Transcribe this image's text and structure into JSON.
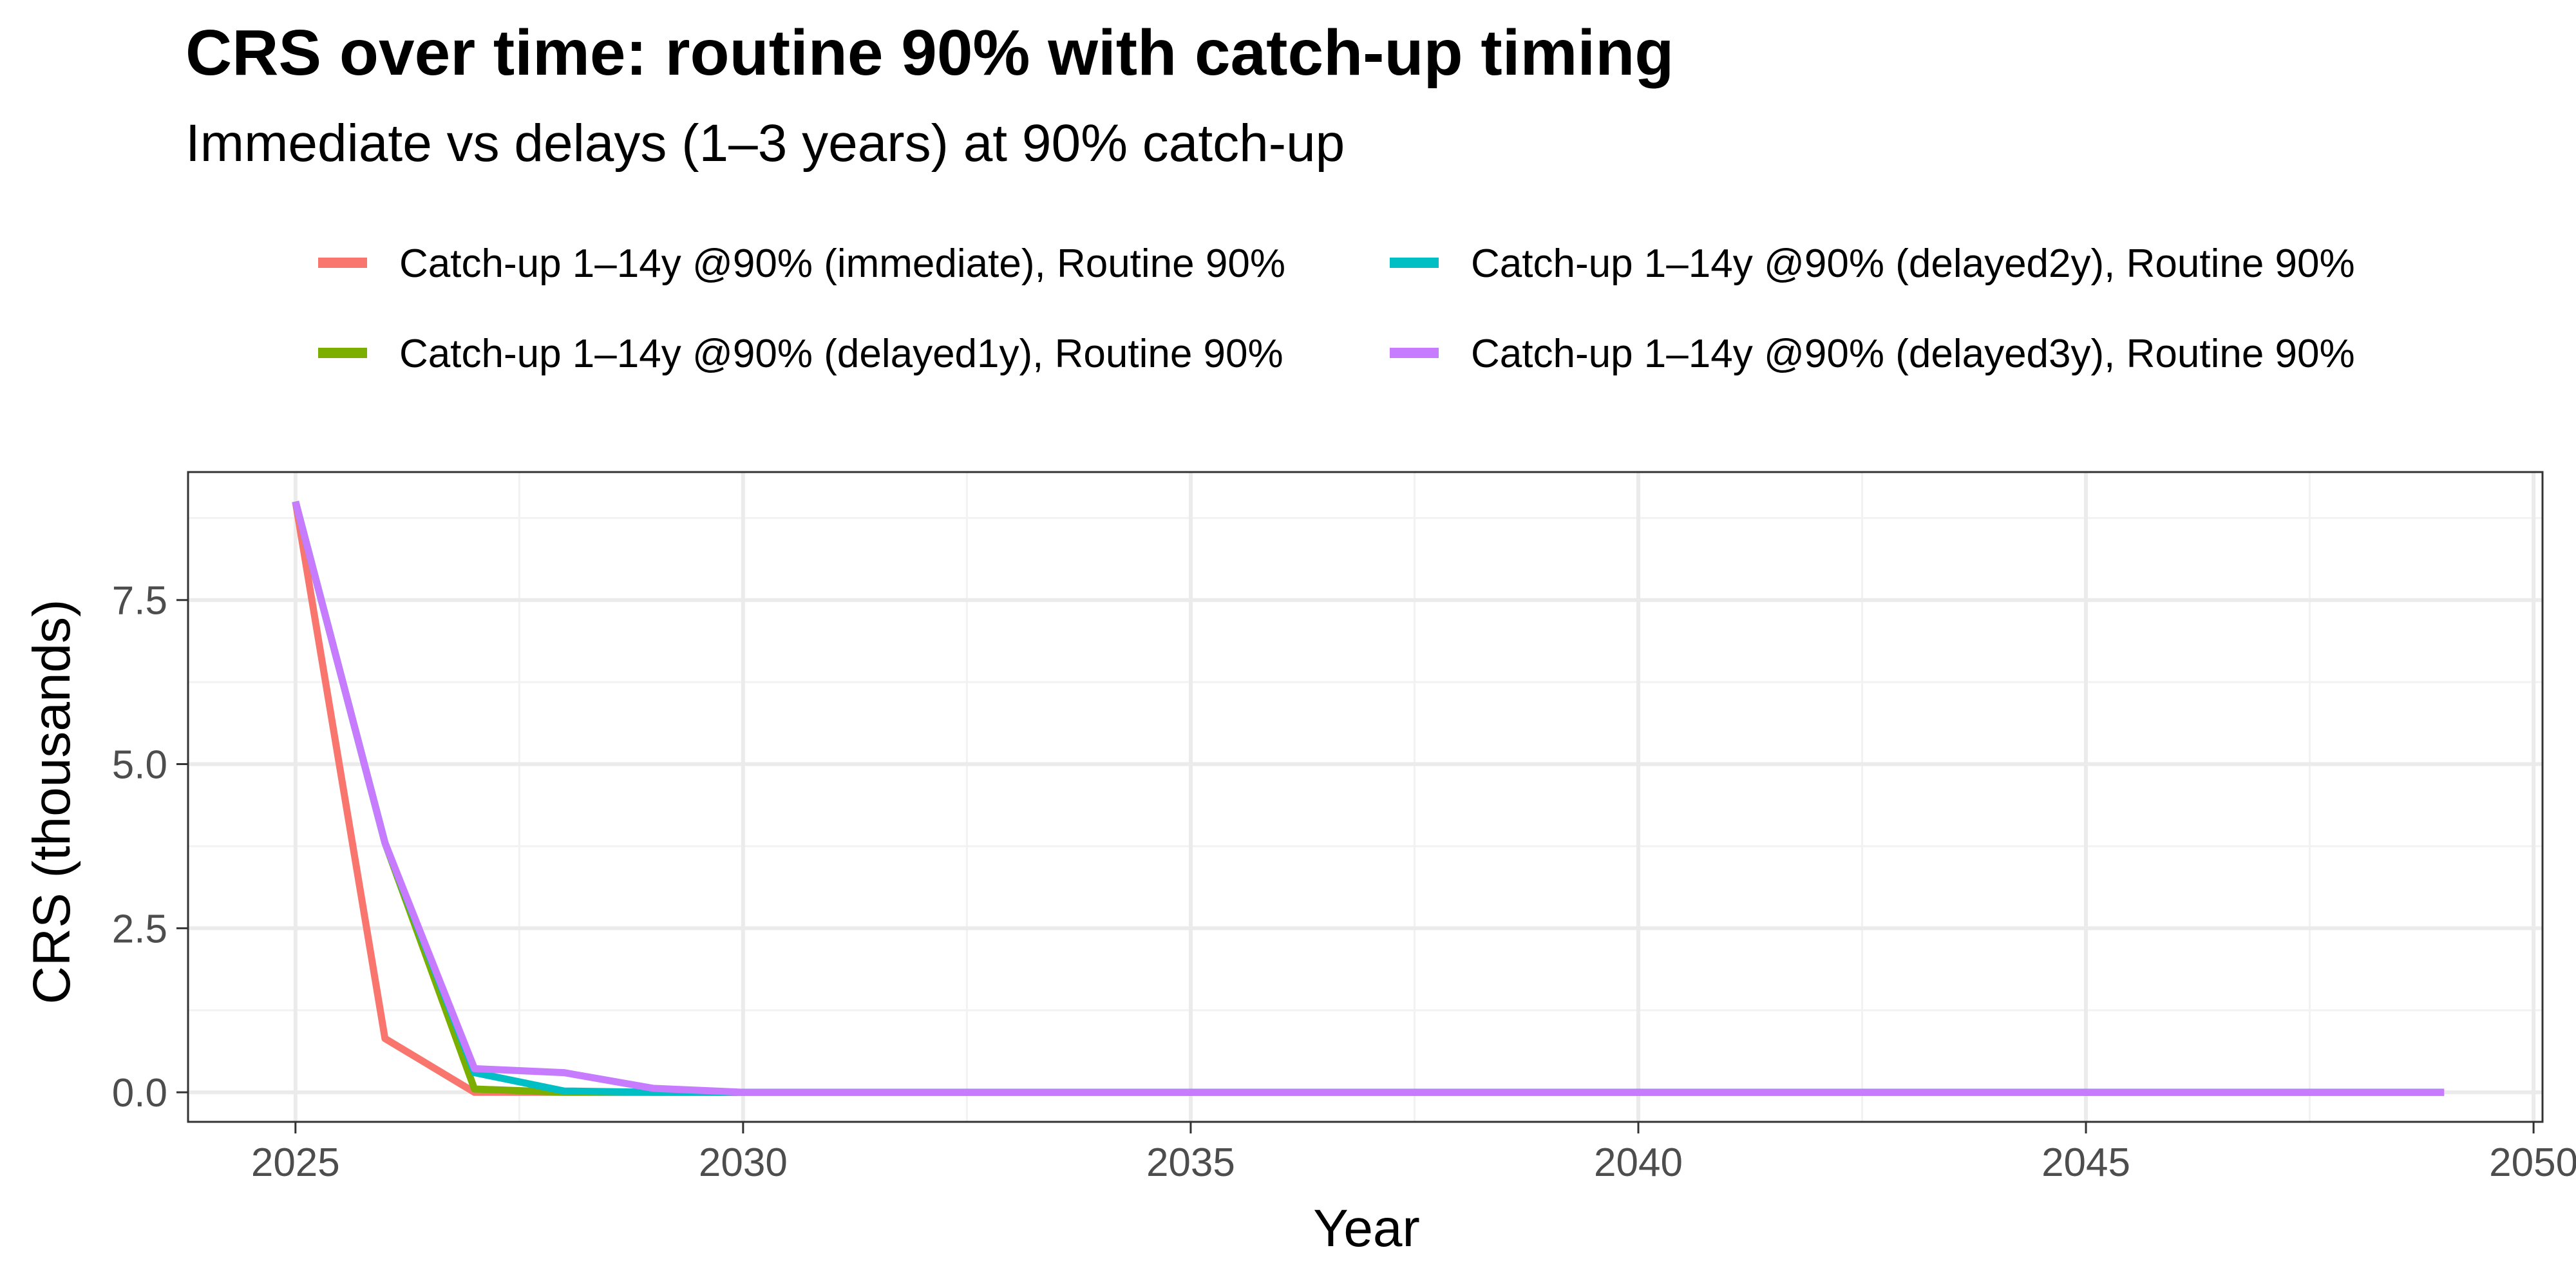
{
  "chart_data": {
    "type": "line",
    "title": "CRS over time: routine 90% with catch-up timing",
    "subtitle": "Immediate vs delays (1–3 years) at 90% catch-up",
    "xlabel": "Year",
    "ylabel": "CRS (thousands)",
    "xlim": [
      2023.8,
      2050.1
    ],
    "ylim": [
      -0.45,
      9.45
    ],
    "x_ticks": [
      2025,
      2030,
      2035,
      2040,
      2045,
      2050
    ],
    "y_ticks": [
      0.0,
      2.5,
      5.0,
      7.5
    ],
    "y_tick_labels": [
      "0.0",
      "2.5",
      "5.0",
      "7.5"
    ],
    "grid": true,
    "legend_position": "top",
    "x": [
      2025,
      2026,
      2027,
      2028,
      2029,
      2030,
      2031,
      2032,
      2033,
      2034,
      2035,
      2036,
      2037,
      2038,
      2039,
      2040,
      2041,
      2042,
      2043,
      2044,
      2045,
      2046,
      2047,
      2048,
      2049
    ],
    "series": [
      {
        "name": "Catch-up 1–14y @90% (immediate), Routine 90%",
        "color": "#F8766D",
        "values": [
          9.0,
          0.82,
          0.0,
          0.0,
          0.0,
          0.0,
          0.0,
          0.0,
          0.0,
          0.0,
          0.0,
          0.0,
          0.0,
          0.0,
          0.0,
          0.0,
          0.0,
          0.0,
          0.0,
          0.0,
          0.0,
          0.0,
          0.0,
          0.0,
          0.0
        ]
      },
      {
        "name": "Catch-up 1–14y @90% (delayed1y), Routine 90%",
        "color": "#7CAE00",
        "values": [
          9.0,
          3.8,
          0.05,
          0.0,
          0.0,
          0.0,
          0.0,
          0.0,
          0.0,
          0.0,
          0.0,
          0.0,
          0.0,
          0.0,
          0.0,
          0.0,
          0.0,
          0.0,
          0.0,
          0.0,
          0.0,
          0.0,
          0.0,
          0.0,
          0.0
        ]
      },
      {
        "name": "Catch-up 1–14y @90% (delayed2y), Routine 90%",
        "color": "#00BFC4",
        "values": [
          9.0,
          3.8,
          0.3,
          0.02,
          0.0,
          0.0,
          0.0,
          0.0,
          0.0,
          0.0,
          0.0,
          0.0,
          0.0,
          0.0,
          0.0,
          0.0,
          0.0,
          0.0,
          0.0,
          0.0,
          0.0,
          0.0,
          0.0,
          0.0,
          0.0
        ]
      },
      {
        "name": "Catch-up 1–14y @90% (delayed3y), Routine 90%",
        "color": "#C77CFF",
        "values": [
          9.0,
          3.8,
          0.36,
          0.3,
          0.06,
          0.0,
          0.0,
          0.0,
          0.0,
          0.0,
          0.0,
          0.0,
          0.0,
          0.0,
          0.0,
          0.0,
          0.0,
          0.0,
          0.0,
          0.0,
          0.0,
          0.0,
          0.0,
          0.0,
          0.0
        ]
      }
    ]
  }
}
